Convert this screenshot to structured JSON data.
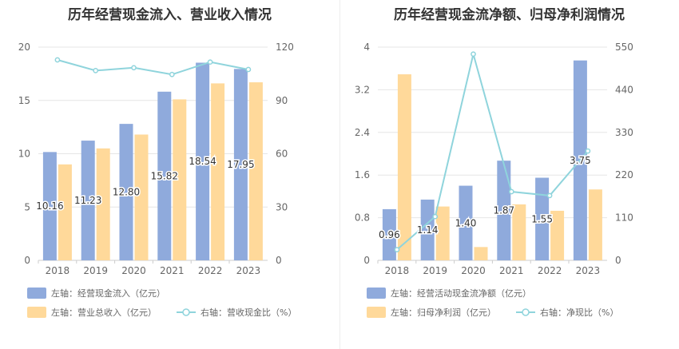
{
  "chart_data": [
    {
      "type": "bar",
      "title": "历年经营现金流入、营业收入情况",
      "categories": [
        "2018",
        "2019",
        "2020",
        "2021",
        "2022",
        "2023"
      ],
      "ylim_left": [
        0,
        20
      ],
      "yticks_left": [
        "0",
        "5",
        "10",
        "15",
        "20"
      ],
      "ylim_right": [
        0,
        120
      ],
      "yticks_right": [
        "0",
        "30",
        "60",
        "90",
        "120"
      ],
      "series": [
        {
          "name": "左轴：经营现金流入（亿元）",
          "type": "bar",
          "axis": "left",
          "color": "#8faadc",
          "values": [
            10.16,
            11.23,
            12.8,
            15.82,
            18.54,
            17.95
          ],
          "labels": [
            "10.16",
            "11.23",
            "12.80",
            "15.82",
            "18.54",
            "17.95"
          ]
        },
        {
          "name": "左轴：营业总收入（亿元）",
          "type": "bar",
          "axis": "left",
          "color": "#ffd99a",
          "values": [
            9.0,
            10.5,
            11.8,
            15.1,
            16.6,
            16.7
          ]
        },
        {
          "name": "右轴：营收现金比（%）",
          "type": "line",
          "axis": "right",
          "color": "#8fd4dc",
          "values": [
            112.8,
            106.8,
            108.4,
            104.6,
            111.6,
            107.4
          ]
        }
      ],
      "grid": true,
      "legend_position": "bottom"
    },
    {
      "type": "bar",
      "title": "历年经营现金流净额、归母净利润情况",
      "categories": [
        "2018",
        "2019",
        "2020",
        "2021",
        "2022",
        "2023"
      ],
      "ylim_left": [
        0,
        4
      ],
      "yticks_left": [
        "0",
        "0.8",
        "1.6",
        "2.4",
        "3.2",
        "4"
      ],
      "ylim_right": [
        0,
        550
      ],
      "yticks_right": [
        "0",
        "110",
        "220",
        "330",
        "440",
        "550"
      ],
      "series": [
        {
          "name": "左轴：经营活动现金流净额（亿元）",
          "type": "bar",
          "axis": "left",
          "color": "#8faadc",
          "values": [
            0.96,
            1.14,
            1.4,
            1.87,
            1.55,
            3.75
          ],
          "labels": [
            "0.96",
            "1.14",
            "1.40",
            "1.87",
            "1.55",
            "3.75"
          ]
        },
        {
          "name": "左轴：归母净利润（亿元）",
          "type": "bar",
          "axis": "left",
          "color": "#ffd99a",
          "values": [
            3.49,
            1.01,
            0.25,
            1.05,
            0.93,
            1.33
          ]
        },
        {
          "name": "右轴：净现比（%）",
          "type": "line",
          "axis": "right",
          "color": "#8fd4dc",
          "values": [
            27.5,
            112.9,
            532.0,
            177.1,
            167.0,
            281.9
          ]
        }
      ],
      "grid": true,
      "legend_position": "bottom"
    }
  ]
}
